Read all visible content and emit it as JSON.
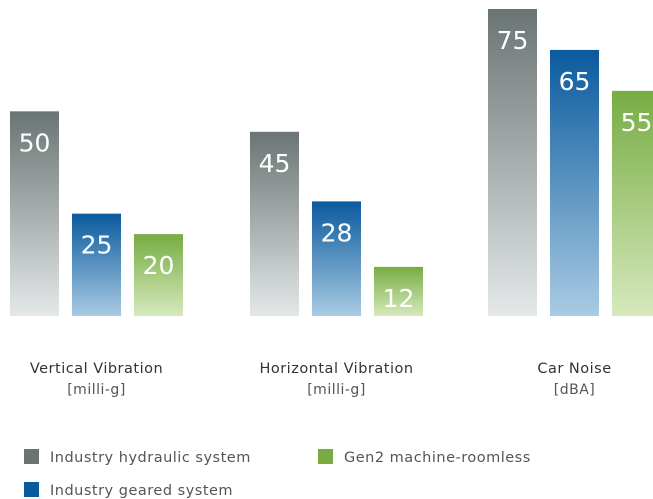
{
  "chart_data": {
    "type": "bar",
    "categories": [
      {
        "label": "Vertical Vibration",
        "unit": "[milli-g]"
      },
      {
        "label": "Horizontal Vibration",
        "unit": "[milli-g]"
      },
      {
        "label": "Car Noise",
        "unit": "[dBA]"
      }
    ],
    "series": [
      {
        "name": "Industry hydraulic system",
        "values": [
          50,
          45,
          75
        ],
        "color_top": "#6b7474",
        "color_bottom": "#e4e8e8",
        "legend_color": "#6b7474"
      },
      {
        "name": "Industry geared system",
        "values": [
          25,
          28,
          65
        ],
        "color_top": "#0a5a9e",
        "color_bottom": "#a9cbe3",
        "legend_color": "#0a5a9e"
      },
      {
        "name": "Gen2 machine-roomless",
        "values": [
          20,
          12,
          55
        ],
        "color_top": "#77ac43",
        "color_bottom": "#d6e9bd",
        "legend_color": "#77ac43"
      }
    ],
    "legend_placement": "bottom-left",
    "grid": false
  }
}
